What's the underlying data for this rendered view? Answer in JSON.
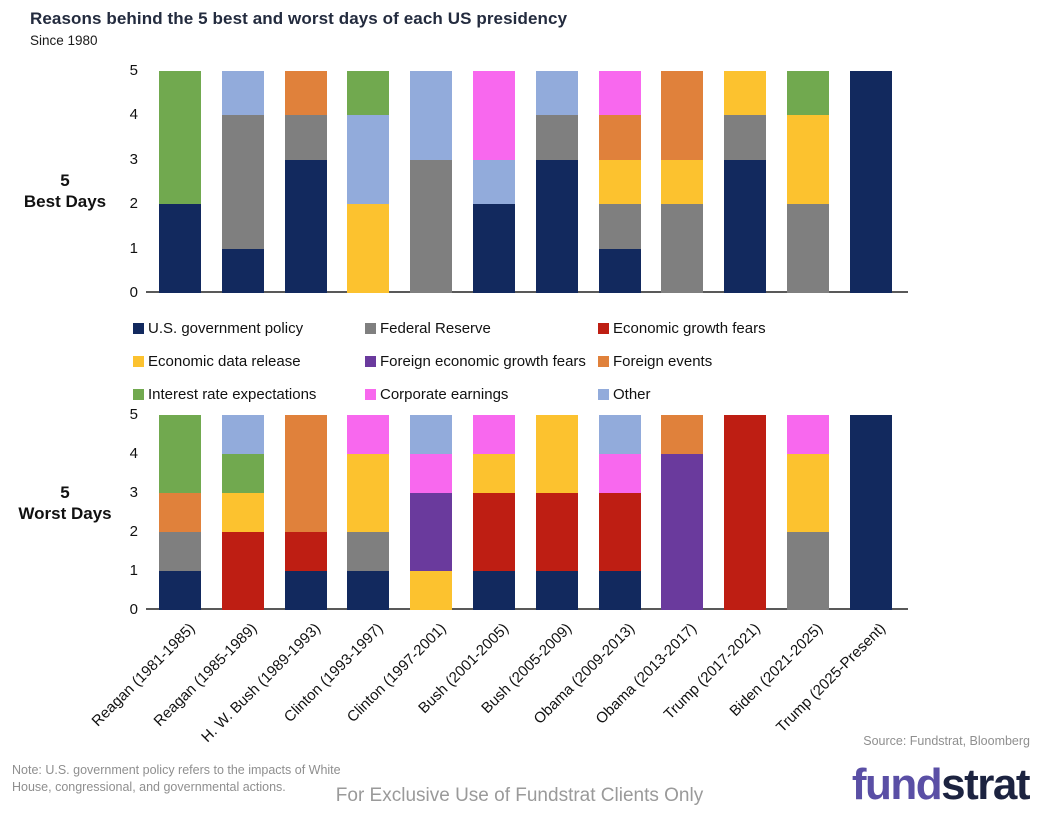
{
  "title": "Reasons behind the 5 best and worst days of each US presidency",
  "subtitle": "Since 1980",
  "legend": [
    {
      "label": "U.S. government policy",
      "color": "#12295E"
    },
    {
      "label": "Federal Reserve",
      "color": "#7F7F7F"
    },
    {
      "label": "Economic growth fears",
      "color": "#BE1E13"
    },
    {
      "label": "Economic data release",
      "color": "#FCC22F"
    },
    {
      "label": "Foreign economic growth fears",
      "color": "#6A3A9D"
    },
    {
      "label": "Foreign events",
      "color": "#E0813B"
    },
    {
      "label": "Interest rate expectations",
      "color": "#71A94F"
    },
    {
      "label": "Corporate earnings",
      "color": "#F868EE"
    },
    {
      "label": "Other",
      "color": "#92ABDB"
    }
  ],
  "chart_data": [
    {
      "type": "bar",
      "stacked": true,
      "row_label_line1": "5",
      "row_label_line2": "Best Days",
      "ylim": [
        0,
        5
      ],
      "yticks": [
        0,
        1,
        2,
        3,
        4,
        5
      ],
      "grid": false,
      "categories": [
        "Reagan (1981-1985)",
        "Reagan (1985-1989)",
        "H. W. Bush (1989-1993)",
        "Clinton (1993-1997)",
        "Clinton (1997-2001)",
        "Bush (2001-2005)",
        "Bush (2005-2009)",
        "Obama (2009-2013)",
        "Obama (2013-2017)",
        "Trump (2017-2021)",
        "Biden (2021-2025)",
        "Trump (2025-Present)"
      ],
      "bars": [
        [
          {
            "reason": "U.S. government policy",
            "value": 2
          },
          {
            "reason": "Interest rate expectations",
            "value": 3
          }
        ],
        [
          {
            "reason": "U.S. government policy",
            "value": 1
          },
          {
            "reason": "Federal Reserve",
            "value": 3
          },
          {
            "reason": "Other",
            "value": 1
          }
        ],
        [
          {
            "reason": "U.S. government policy",
            "value": 3
          },
          {
            "reason": "Federal Reserve",
            "value": 1
          },
          {
            "reason": "Foreign events",
            "value": 1
          }
        ],
        [
          {
            "reason": "Economic data release",
            "value": 2
          },
          {
            "reason": "Other",
            "value": 2
          },
          {
            "reason": "Interest rate expectations",
            "value": 1
          }
        ],
        [
          {
            "reason": "Federal Reserve",
            "value": 3
          },
          {
            "reason": "Other",
            "value": 2
          }
        ],
        [
          {
            "reason": "U.S. government policy",
            "value": 2
          },
          {
            "reason": "Other",
            "value": 1
          },
          {
            "reason": "Corporate earnings",
            "value": 2
          }
        ],
        [
          {
            "reason": "U.S. government policy",
            "value": 3
          },
          {
            "reason": "Federal Reserve",
            "value": 1
          },
          {
            "reason": "Other",
            "value": 1
          }
        ],
        [
          {
            "reason": "U.S. government policy",
            "value": 1
          },
          {
            "reason": "Federal Reserve",
            "value": 1
          },
          {
            "reason": "Economic data release",
            "value": 1
          },
          {
            "reason": "Foreign events",
            "value": 1
          },
          {
            "reason": "Corporate earnings",
            "value": 1
          }
        ],
        [
          {
            "reason": "Federal Reserve",
            "value": 2
          },
          {
            "reason": "Economic data release",
            "value": 1
          },
          {
            "reason": "Foreign events",
            "value": 2
          }
        ],
        [
          {
            "reason": "U.S. government policy",
            "value": 3
          },
          {
            "reason": "Federal Reserve",
            "value": 1
          },
          {
            "reason": "Economic data release",
            "value": 1
          }
        ],
        [
          {
            "reason": "Federal Reserve",
            "value": 2
          },
          {
            "reason": "Economic data release",
            "value": 2
          },
          {
            "reason": "Interest rate expectations",
            "value": 1
          }
        ],
        [
          {
            "reason": "U.S. government policy",
            "value": 5
          }
        ]
      ]
    },
    {
      "type": "bar",
      "stacked": true,
      "row_label_line1": "5",
      "row_label_line2": "Worst Days",
      "ylim": [
        0,
        5
      ],
      "yticks": [
        0,
        1,
        2,
        3,
        4,
        5
      ],
      "grid": false,
      "categories": [
        "Reagan (1981-1985)",
        "Reagan (1985-1989)",
        "H. W. Bush (1989-1993)",
        "Clinton (1993-1997)",
        "Clinton (1997-2001)",
        "Bush (2001-2005)",
        "Bush (2005-2009)",
        "Obama (2009-2013)",
        "Obama (2013-2017)",
        "Trump (2017-2021)",
        "Biden (2021-2025)",
        "Trump (2025-Present)"
      ],
      "bars": [
        [
          {
            "reason": "U.S. government policy",
            "value": 1
          },
          {
            "reason": "Federal Reserve",
            "value": 1
          },
          {
            "reason": "Foreign events",
            "value": 1
          },
          {
            "reason": "Interest rate expectations",
            "value": 2
          }
        ],
        [
          {
            "reason": "Economic growth fears",
            "value": 2
          },
          {
            "reason": "Economic data release",
            "value": 1
          },
          {
            "reason": "Interest rate expectations",
            "value": 1
          },
          {
            "reason": "Other",
            "value": 1
          }
        ],
        [
          {
            "reason": "U.S. government policy",
            "value": 1
          },
          {
            "reason": "Economic growth fears",
            "value": 1
          },
          {
            "reason": "Foreign events",
            "value": 3
          }
        ],
        [
          {
            "reason": "U.S. government policy",
            "value": 1
          },
          {
            "reason": "Federal Reserve",
            "value": 1
          },
          {
            "reason": "Economic data release",
            "value": 2
          },
          {
            "reason": "Corporate earnings",
            "value": 1
          }
        ],
        [
          {
            "reason": "Economic data release",
            "value": 1
          },
          {
            "reason": "Foreign economic growth fears",
            "value": 2
          },
          {
            "reason": "Corporate earnings",
            "value": 1
          },
          {
            "reason": "Other",
            "value": 1
          }
        ],
        [
          {
            "reason": "U.S. government policy",
            "value": 1
          },
          {
            "reason": "Economic growth fears",
            "value": 2
          },
          {
            "reason": "Economic data release",
            "value": 1
          },
          {
            "reason": "Corporate earnings",
            "value": 1
          }
        ],
        [
          {
            "reason": "U.S. government policy",
            "value": 1
          },
          {
            "reason": "Economic growth fears",
            "value": 2
          },
          {
            "reason": "Economic data release",
            "value": 2
          }
        ],
        [
          {
            "reason": "U.S. government policy",
            "value": 1
          },
          {
            "reason": "Economic growth fears",
            "value": 2
          },
          {
            "reason": "Corporate earnings",
            "value": 1
          },
          {
            "reason": "Other",
            "value": 1
          }
        ],
        [
          {
            "reason": "Foreign economic growth fears",
            "value": 4
          },
          {
            "reason": "Foreign events",
            "value": 1
          }
        ],
        [
          {
            "reason": "Economic growth fears",
            "value": 5
          }
        ],
        [
          {
            "reason": "Federal Reserve",
            "value": 2
          },
          {
            "reason": "Economic data release",
            "value": 2
          },
          {
            "reason": "Corporate earnings",
            "value": 1
          }
        ],
        [
          {
            "reason": "U.S. government policy",
            "value": 5
          }
        ]
      ]
    }
  ],
  "source": "Source: Fundstrat, Bloomberg",
  "note": "Note: U.S. government policy refers to the impacts of White House, congressional, and governmental actions.",
  "footer": "For Exclusive Use of Fundstrat Clients Only",
  "logo": {
    "part1": "fund",
    "part2": "strat",
    "color1": "#5A4FA5",
    "color2": "#1C2340"
  }
}
